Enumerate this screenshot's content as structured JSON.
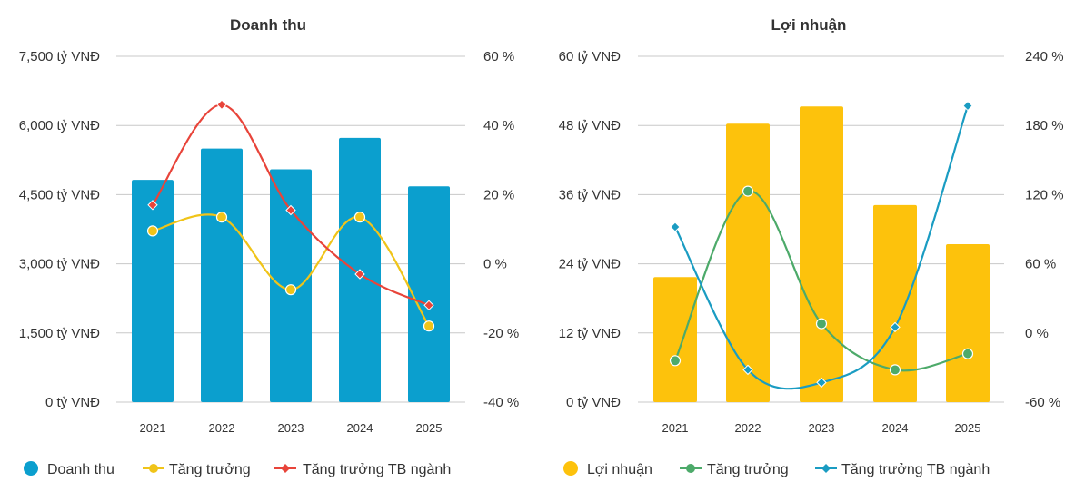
{
  "chart_data": [
    {
      "type": "bar",
      "title": "Doanh thu",
      "categories": [
        "2021",
        "2022",
        "2023",
        "2024",
        "2025"
      ],
      "y_ticks": [
        "0 tỷ VNĐ",
        "1,500 tỷ VNĐ",
        "3,000 tỷ VNĐ",
        "4,500 tỷ VNĐ",
        "6,000 tỷ VNĐ",
        "7,500 tỷ VNĐ"
      ],
      "y2_ticks": [
        "-40 %",
        "-20 %",
        "0 %",
        "20 %",
        "40 %",
        "60 %"
      ],
      "ylim": [
        0,
        7500
      ],
      "y2lim": [
        -40,
        60
      ],
      "grid": true,
      "legend": "bottom",
      "series": [
        {
          "name": "Doanh thu",
          "kind": "bar",
          "axis": "left",
          "color": "#0b9fce",
          "values": [
            4820,
            5500,
            5050,
            5730,
            4680
          ]
        },
        {
          "name": "Tăng trưởng",
          "kind": "line",
          "marker": "circle",
          "axis": "right",
          "color": "#f0c419",
          "values": [
            9.5,
            13.5,
            -7.5,
            13.5,
            -18
          ]
        },
        {
          "name": "Tăng trưởng TB ngành",
          "kind": "line",
          "marker": "diamond",
          "axis": "right",
          "color": "#e8443a",
          "values": [
            17,
            46,
            15.5,
            -3,
            -12
          ]
        }
      ]
    },
    {
      "type": "bar",
      "title": "Lợi nhuận",
      "categories": [
        "2021",
        "2022",
        "2023",
        "2024",
        "2025"
      ],
      "y_ticks": [
        "0 tỷ VNĐ",
        "12 tỷ VNĐ",
        "24 tỷ VNĐ",
        "36 tỷ VNĐ",
        "48 tỷ VNĐ",
        "60 tỷ VNĐ"
      ],
      "y2_ticks": [
        "-60 %",
        "0 %",
        "60 %",
        "120 %",
        "180 %",
        "240 %"
      ],
      "ylim": [
        0,
        60
      ],
      "y2lim": [
        -60,
        240
      ],
      "grid": true,
      "legend": "bottom",
      "series": [
        {
          "name": "Lợi nhuận",
          "kind": "bar",
          "axis": "left",
          "color": "#fdc20c",
          "values": [
            21.7,
            48.3,
            51.3,
            34.2,
            27.4
          ]
        },
        {
          "name": "Tăng trưởng",
          "kind": "line",
          "marker": "circle",
          "axis": "right",
          "color": "#4daa6a",
          "values": [
            -24,
            123,
            8,
            -32,
            -18
          ]
        },
        {
          "name": "Tăng trưởng TB ngành",
          "kind": "line",
          "marker": "diamond",
          "axis": "right",
          "color": "#1a9cc2",
          "values": [
            92,
            -32,
            -43,
            5,
            197
          ]
        }
      ]
    }
  ]
}
